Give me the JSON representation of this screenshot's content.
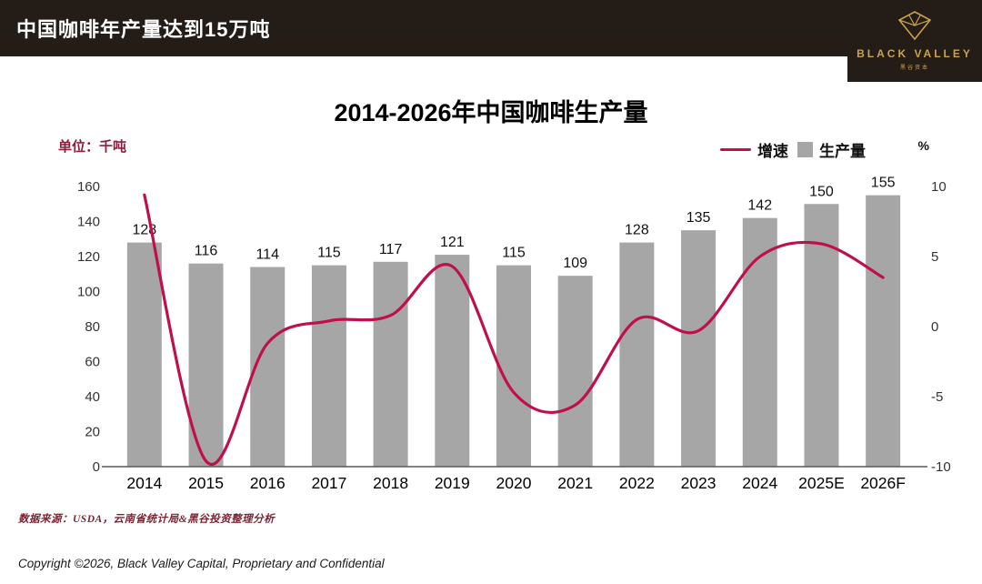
{
  "header": {
    "title": "中国咖啡年产量达到15万吨",
    "logo": {
      "brand": "BLACK VALLEY",
      "subtext": "黑谷资本"
    }
  },
  "chart": {
    "title": "2014-2026年中国咖啡生产量",
    "unit_label": "单位：千吨",
    "legend": {
      "line_label": "增速",
      "bar_label": "生产量",
      "percent_label": "%"
    }
  },
  "chart_data": {
    "type": "bar",
    "title": "2014-2026年中国咖啡生产量",
    "categories": [
      "2014",
      "2015",
      "2016",
      "2017",
      "2018",
      "2019",
      "2020",
      "2021",
      "2022",
      "2023",
      "2024",
      "2025E",
      "2026F"
    ],
    "series": [
      {
        "name": "生产量",
        "type": "bar",
        "axis": "left",
        "color": "#a6a6a6",
        "values": [
          128,
          116,
          114,
          115,
          117,
          121,
          115,
          109,
          128,
          135,
          142,
          150,
          155
        ]
      },
      {
        "name": "增速",
        "type": "line",
        "axis": "right",
        "color": "#c01048",
        "values": [
          9.4,
          -9.6,
          -1.2,
          0.4,
          0.8,
          4.3,
          -4.7,
          -5.6,
          0.5,
          -0.3,
          5.0,
          5.9,
          3.5
        ]
      }
    ],
    "left_axis": {
      "min": 0,
      "max": 160,
      "step": 20,
      "unit": "千吨"
    },
    "right_axis": {
      "min": -10,
      "max": 10,
      "step": 5,
      "unit": "%"
    },
    "grid": false,
    "legend_position": "top-right"
  },
  "footer": {
    "source": "数据来源：USDA，云南省统计局&黑谷投资整理分析",
    "copyright": "Copyright ©2026, Black Valley Capital, Proprietary and Confidential"
  }
}
